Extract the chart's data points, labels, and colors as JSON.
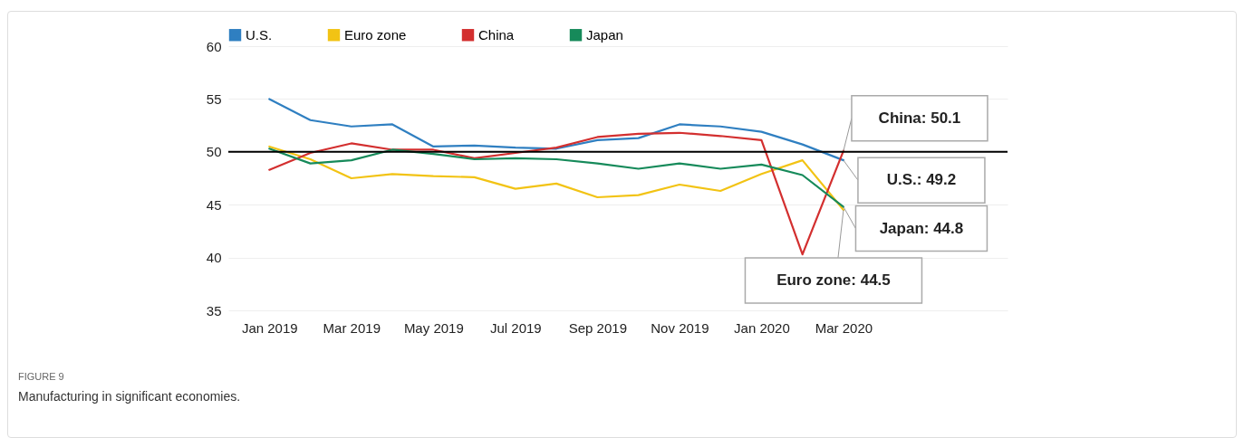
{
  "chart_data": {
    "type": "line",
    "title": "FIGURE 9",
    "subtitle": "Manufacturing in significant economies.",
    "categories": [
      "Jan 2019",
      null,
      "Mar 2019",
      null,
      "May 2019",
      null,
      "Jul 2019",
      null,
      "Sep 2019",
      null,
      "Nov 2019",
      null,
      "Jan 2020",
      null,
      "Mar 2020"
    ],
    "series": [
      {
        "name": "U.S.",
        "color": "#2f7fc1",
        "values": [
          55.0,
          53.0,
          52.4,
          52.6,
          50.5,
          50.6,
          50.4,
          50.3,
          51.1,
          51.3,
          52.6,
          52.4,
          51.9,
          50.7,
          49.2
        ]
      },
      {
        "name": "Euro zone",
        "color": "#f2c314",
        "values": [
          50.5,
          49.3,
          47.5,
          47.9,
          47.7,
          47.6,
          46.5,
          47.0,
          45.7,
          45.9,
          46.9,
          46.3,
          47.9,
          49.2,
          44.5
        ]
      },
      {
        "name": "China",
        "color": "#d32f2f",
        "values": [
          48.3,
          49.9,
          50.8,
          50.2,
          50.2,
          49.4,
          49.9,
          50.4,
          51.4,
          51.7,
          51.8,
          51.5,
          51.1,
          40.3,
          50.1
        ]
      },
      {
        "name": "Japan",
        "color": "#168a5a",
        "values": [
          50.3,
          48.9,
          49.2,
          50.2,
          49.8,
          49.3,
          49.4,
          49.3,
          48.9,
          48.4,
          48.9,
          48.4,
          48.8,
          47.8,
          44.8
        ]
      }
    ],
    "ylim": [
      35,
      60
    ],
    "yticks": [
      35,
      40,
      45,
      50,
      55,
      60
    ],
    "grid": "y",
    "legend": "top",
    "line_style": "solid",
    "ref_lines": [
      {
        "axis": "y",
        "value": 50,
        "color": "#000000"
      }
    ],
    "annotations": [
      {
        "text": "China: 50.1",
        "x": "Mar 2020",
        "y": 50.1
      },
      {
        "text": "U.S.: 49.2",
        "x": "Mar 2020",
        "y": 49.2
      },
      {
        "text": "Japan: 44.8",
        "x": "Mar 2020",
        "y": 44.8
      },
      {
        "text": "Euro zone: 44.5",
        "x": "Mar 2020",
        "y": 44.5
      }
    ]
  }
}
